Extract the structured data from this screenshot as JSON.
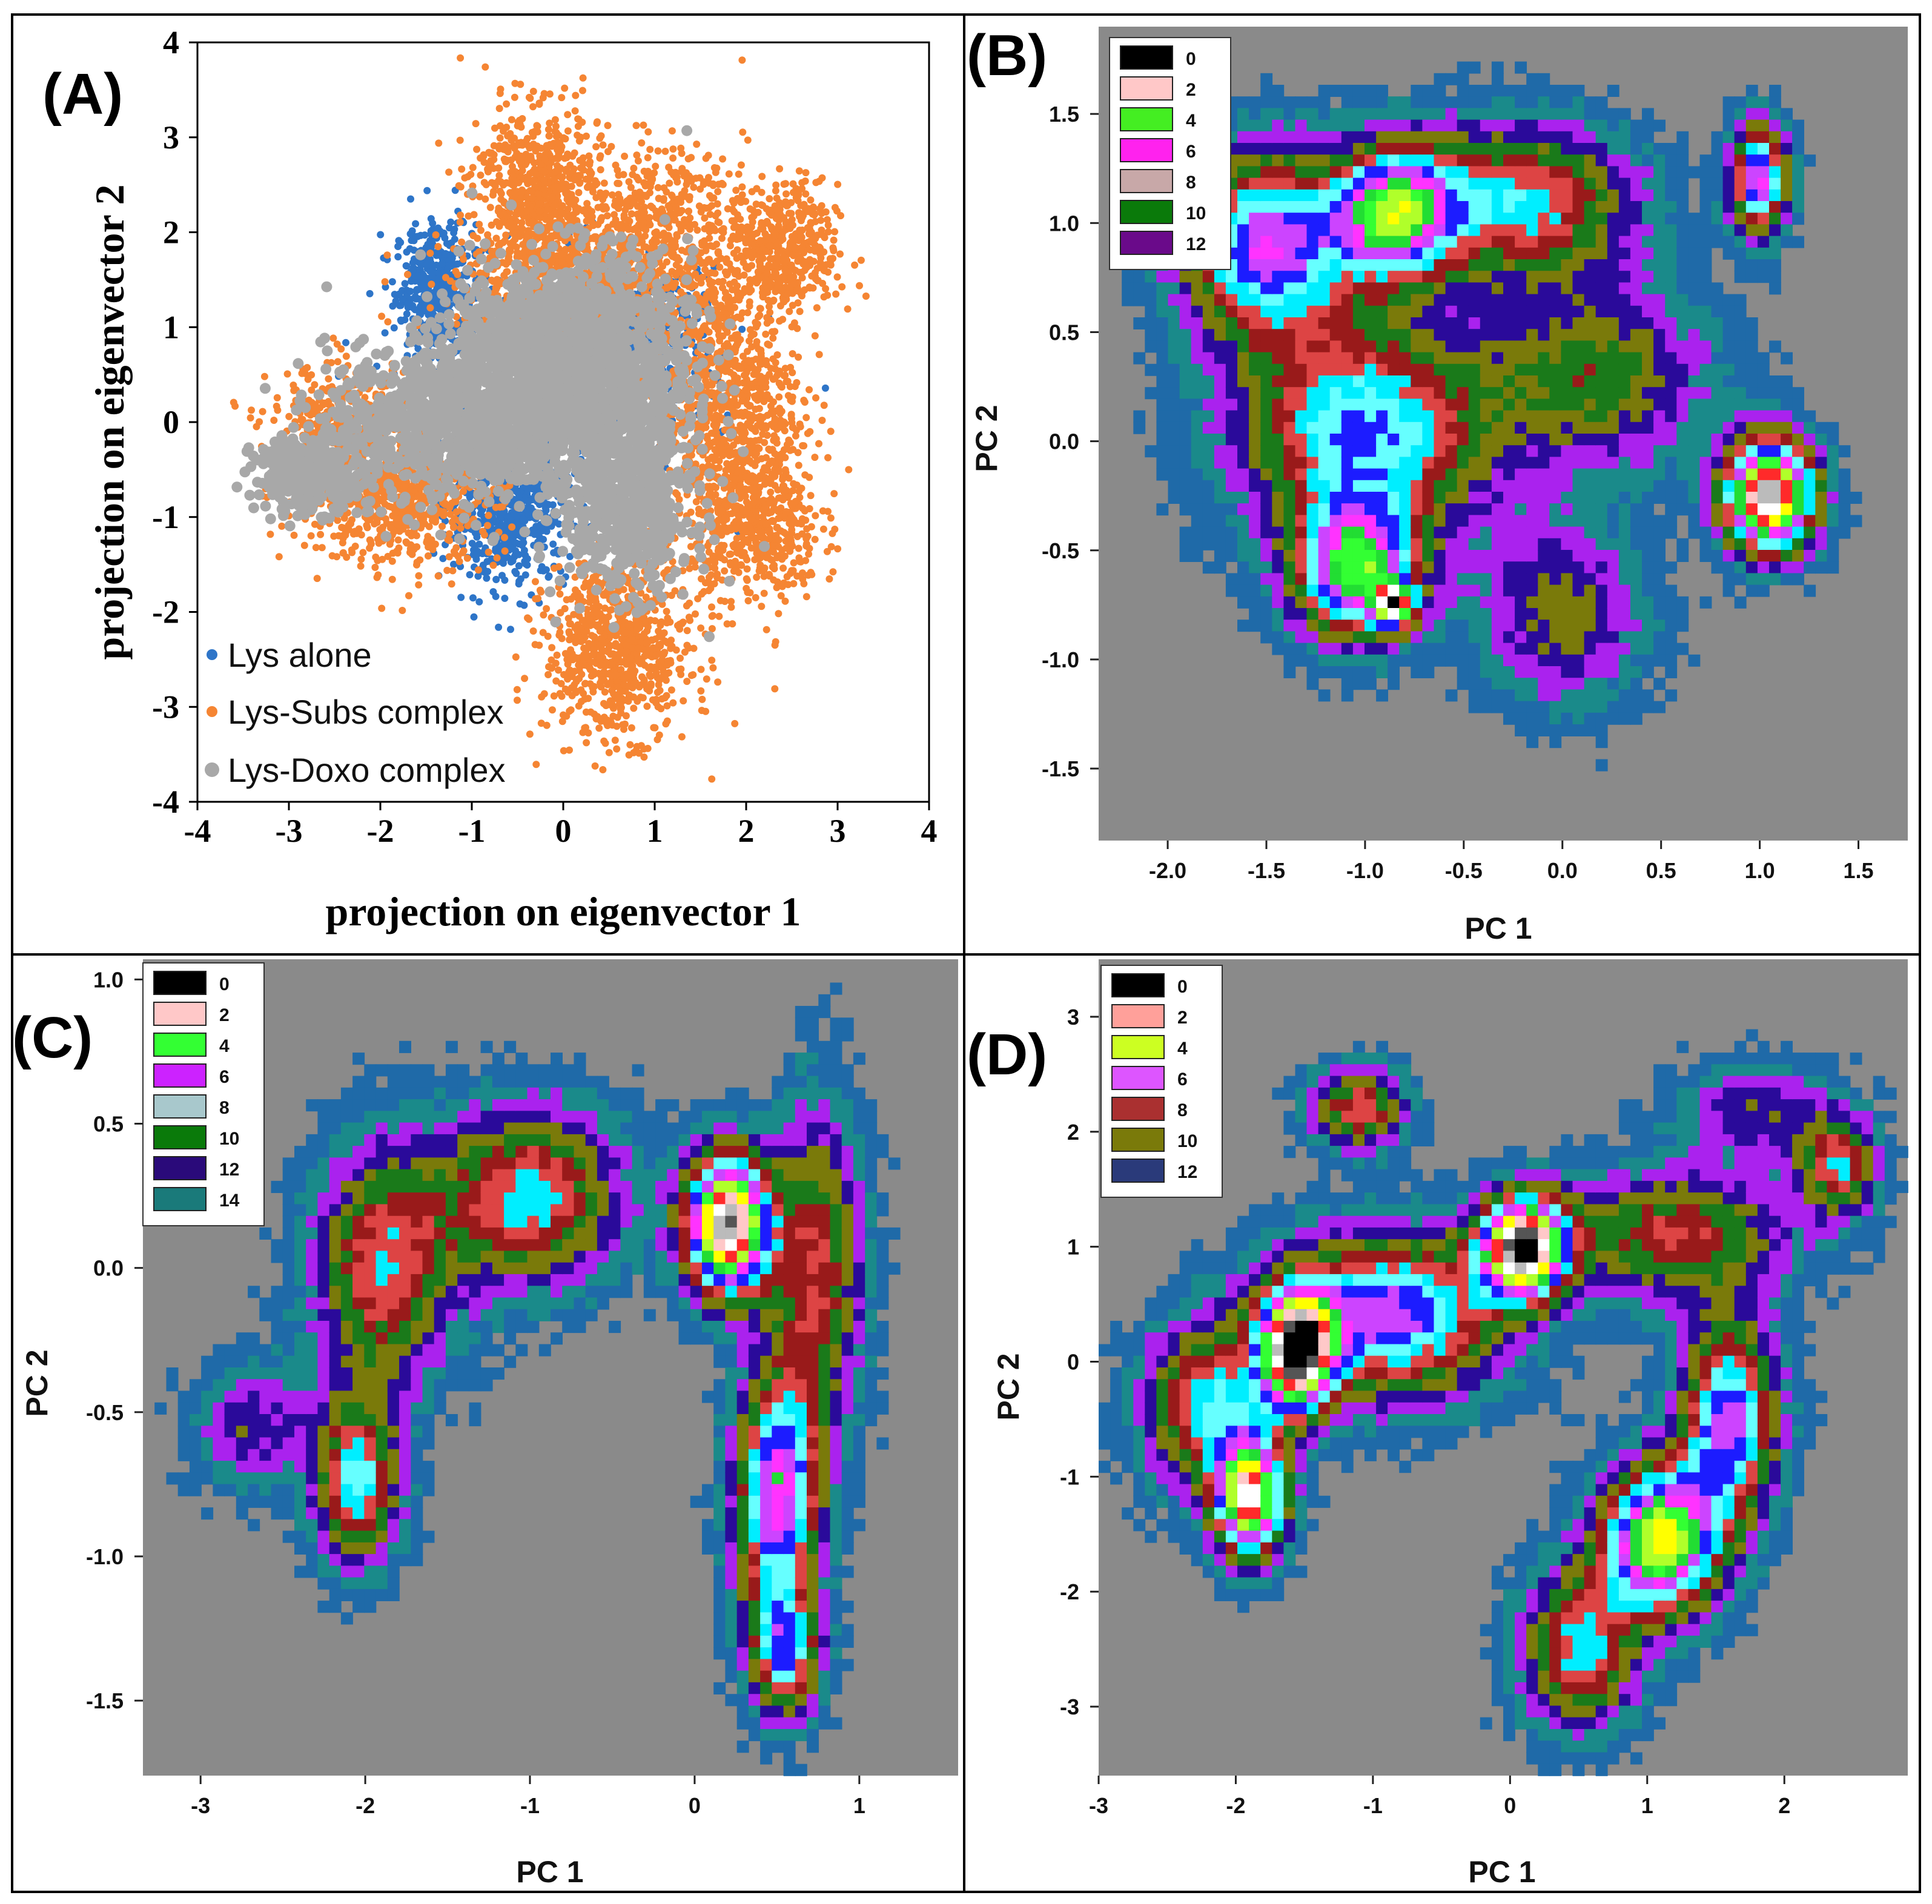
{
  "chart_data": [
    {
      "panel": "(A)",
      "type": "scatter",
      "xlabel": "projection on eigenvector 1",
      "ylabel": "projection on eigenvector 2",
      "xlim": [
        -4,
        4
      ],
      "ylim": [
        -4,
        4
      ],
      "x_ticks": [
        "-4",
        "-3",
        "-2",
        "-1",
        "0",
        "1",
        "2",
        "3",
        "4"
      ],
      "y_ticks": [
        "4",
        "3",
        "2",
        "1",
        "0",
        "-1",
        "-2",
        "-3",
        "-4"
      ],
      "legend": [
        "Lys alone",
        "Lys-Subs complex",
        "Lys-Doxo complex"
      ],
      "colors": [
        "#2e75c8",
        "#f58533",
        "#a8a8a8"
      ],
      "series": [
        {
          "name": "Lys alone",
          "clusters": [
            {
              "cx": -1.4,
              "cy": 1.4,
              "sx": 0.22,
              "sy": 0.35,
              "n": 450
            },
            {
              "cx": -0.6,
              "cy": -1.0,
              "sx": 0.32,
              "sy": 0.35,
              "n": 550
            },
            {
              "cx": 1.0,
              "cy": 1.0,
              "sx": 0.35,
              "sy": 0.3,
              "n": 250
            },
            {
              "cx": 0.0,
              "cy": 0.3,
              "sx": 0.8,
              "sy": 0.7,
              "n": 400
            }
          ]
        },
        {
          "name": "Lys-Subs complex",
          "clusters": [
            {
              "cx": -0.3,
              "cy": 2.4,
              "sx": 0.35,
              "sy": 0.45,
              "n": 700
            },
            {
              "cx": 1.0,
              "cy": 2.1,
              "sx": 0.5,
              "sy": 0.4,
              "n": 500
            },
            {
              "cx": 2.4,
              "cy": 1.8,
              "sx": 0.3,
              "sy": 0.35,
              "n": 500
            },
            {
              "cx": 1.8,
              "cy": 0.2,
              "sx": 0.4,
              "sy": 0.7,
              "n": 900
            },
            {
              "cx": 2.1,
              "cy": -1.1,
              "sx": 0.35,
              "sy": 0.4,
              "n": 500
            },
            {
              "cx": 0.6,
              "cy": -2.4,
              "sx": 0.4,
              "sy": 0.45,
              "n": 800
            },
            {
              "cx": -1.8,
              "cy": -0.8,
              "sx": 0.55,
              "sy": 0.35,
              "n": 700
            },
            {
              "cx": -2.4,
              "cy": -0.1,
              "sx": 0.4,
              "sy": 0.35,
              "n": 400
            },
            {
              "cx": 0.2,
              "cy": 1.4,
              "sx": 0.7,
              "sy": 0.3,
              "n": 700
            }
          ]
        },
        {
          "name": "Lys-Doxo complex",
          "clusters": [
            {
              "cx": 0.3,
              "cy": 0.5,
              "sx": 0.55,
              "sy": 0.6,
              "n": 1500
            },
            {
              "cx": -1.2,
              "cy": 0.0,
              "sx": 0.7,
              "sy": 0.4,
              "n": 1000
            },
            {
              "cx": 0.7,
              "cy": -0.9,
              "sx": 0.35,
              "sy": 0.45,
              "n": 600
            },
            {
              "cx": -2.8,
              "cy": -0.55,
              "sx": 0.3,
              "sy": 0.2,
              "n": 300
            },
            {
              "cx": -0.4,
              "cy": 0.8,
              "sx": 0.5,
              "sy": 0.35,
              "n": 600
            }
          ]
        }
      ]
    },
    {
      "panel": "(B)",
      "type": "heatmap",
      "xlabel": "PC 1",
      "ylabel": "PC 2",
      "xlim": [
        -2.35,
        1.75
      ],
      "ylim": [
        -1.83,
        1.9
      ],
      "x_ticks": [
        -2.0,
        -1.5,
        -1.0,
        -0.5,
        0.0,
        0.5,
        1.0,
        1.5
      ],
      "y_ticks": [
        1.5,
        1.0,
        0.5,
        0.0,
        -0.5,
        -1.0,
        -1.5
      ],
      "x_tick_labels": [
        "-2.0",
        "-1.5",
        "-1.0",
        "-0.5",
        "0.0",
        "0.5",
        "1.0",
        "1.5"
      ],
      "y_tick_labels": [
        "1.5",
        "1.0",
        "0.5",
        "0.0",
        "-0.5",
        "-1.0",
        "-1.5"
      ],
      "legend_levels": [
        "0",
        "2",
        "4",
        "6",
        "8",
        "10",
        "12"
      ],
      "legend_colors": [
        "#000000",
        "#ffc8c8",
        "#44ee22",
        "#ff22ee",
        "#c8a8a8",
        "#0a7a0a",
        "#6a0a8a"
      ],
      "colormap": [
        "#000000",
        "#555555",
        "#bbbbbb",
        "#ffffff",
        "#ffc8c8",
        "#ff2a2a",
        "#ffff00",
        "#b0ff2a",
        "#33ff33",
        "#22dd33",
        "#ff33ff",
        "#cc44ff",
        "#1c1cff",
        "#66ffff",
        "#00eeff",
        "#dd4444",
        "#991a1a",
        "#1a7a1a",
        "#7a7a0a",
        "#2a0a9a",
        "#aa22ee",
        "#1a8a8a",
        "#1f6aa8",
        "#8a8a8a"
      ],
      "peaks": [
        {
          "x": 1.05,
          "y": -0.25,
          "depth": 14,
          "sx": 0.16,
          "sy": 0.18
        },
        {
          "x": -1.05,
          "y": -0.6,
          "depth": 9,
          "sx": 0.22,
          "sy": 0.22
        },
        {
          "x": -0.85,
          "y": -0.75,
          "depth": 9.5,
          "sx": 0.07,
          "sy": 0.07
        },
        {
          "x": -1.5,
          "y": 0.9,
          "depth": 8,
          "sx": 0.3,
          "sy": 0.3
        },
        {
          "x": -0.85,
          "y": 1.05,
          "depth": 8.5,
          "sx": 0.22,
          "sy": 0.22
        },
        {
          "x": -1.0,
          "y": 0.05,
          "depth": 7,
          "sx": 0.45,
          "sy": 0.35
        },
        {
          "x": 1.0,
          "y": 1.2,
          "depth": 8.5,
          "sx": 0.1,
          "sy": 0.18
        },
        {
          "x": -0.2,
          "y": 1.1,
          "depth": 6,
          "sx": 0.4,
          "sy": 0.25
        },
        {
          "x": 0.2,
          "y": 0.3,
          "depth": 4,
          "sx": 0.4,
          "sy": 0.3
        },
        {
          "x": 0.0,
          "y": -0.8,
          "depth": 3.5,
          "sx": 0.3,
          "sy": 0.3
        }
      ]
    },
    {
      "panel": "(C)",
      "type": "heatmap",
      "xlabel": "PC 1",
      "ylabel": "PC 2",
      "xlim": [
        -3.35,
        1.6
      ],
      "ylim": [
        -1.76,
        1.07
      ],
      "x_ticks": [
        -3,
        -2,
        -1,
        0,
        1
      ],
      "y_ticks": [
        1.0,
        0.5,
        0.0,
        -0.5,
        -1.0,
        -1.5
      ],
      "x_tick_labels": [
        "-3",
        "-2",
        "-1",
        "0",
        "1"
      ],
      "y_tick_labels": [
        "1.0",
        "0.5",
        "0.0",
        "-0.5",
        "-1.0",
        "-1.5"
      ],
      "legend_levels": [
        "0",
        "2",
        "4",
        "6",
        "8",
        "10",
        "12",
        "14"
      ],
      "legend_colors": [
        "#000000",
        "#ffc8c8",
        "#33ff33",
        "#cc22ff",
        "#a8c8cc",
        "#0a7a0a",
        "#2a0a7a",
        "#1a7a7a"
      ],
      "colormap": [
        "#000000",
        "#555555",
        "#bbbbbb",
        "#ffffff",
        "#ffc8c8",
        "#ff2a2a",
        "#ffff00",
        "#b0ff2a",
        "#33ff33",
        "#22dd33",
        "#ff33ff",
        "#cc44ff",
        "#1c1cff",
        "#66ffff",
        "#00eeff",
        "#dd4444",
        "#991a1a",
        "#1a7a1a",
        "#7a7a0a",
        "#2a0a9a",
        "#aa22ee",
        "#1a8a8a",
        "#1f6aa8",
        "#8a8a8a"
      ],
      "peaks": [
        {
          "x": 0.2,
          "y": 0.15,
          "depth": 14,
          "sx": 0.18,
          "sy": 0.17
        },
        {
          "x": 0.5,
          "y": -0.8,
          "depth": 8.5,
          "sx": 0.18,
          "sy": 0.3
        },
        {
          "x": 0.55,
          "y": -1.35,
          "depth": 6,
          "sx": 0.15,
          "sy": 0.15
        },
        {
          "x": -1.0,
          "y": 0.25,
          "depth": 6,
          "sx": 0.4,
          "sy": 0.22
        },
        {
          "x": -1.9,
          "y": 0.0,
          "depth": 5.5,
          "sx": 0.3,
          "sy": 0.3
        },
        {
          "x": -2.05,
          "y": -0.75,
          "depth": 6.5,
          "sx": 0.18,
          "sy": 0.2
        },
        {
          "x": -2.7,
          "y": -0.55,
          "depth": 3,
          "sx": 0.25,
          "sy": 0.15
        },
        {
          "x": 0.75,
          "y": 0.0,
          "depth": 5,
          "sx": 0.2,
          "sy": 0.4
        }
      ]
    },
    {
      "panel": "(D)",
      "type": "heatmap",
      "xlabel": "PC 1",
      "ylabel": "PC 2",
      "xlim": [
        -3.0,
        2.9
      ],
      "ylim": [
        -3.6,
        3.5
      ],
      "x_ticks": [
        -3,
        -2,
        -1,
        0,
        1,
        2
      ],
      "y_ticks": [
        3,
        2,
        1,
        0,
        -1,
        -2,
        -3
      ],
      "x_tick_labels": [
        "-3",
        "-2",
        "-1",
        "0",
        "1",
        "2"
      ],
      "y_tick_labels": [
        "3",
        "2",
        "1",
        "0",
        "-1",
        "-2",
        "-3"
      ],
      "legend_levels": [
        "0",
        "2",
        "4",
        "6",
        "8",
        "10",
        "12"
      ],
      "legend_colors": [
        "#000000",
        "#ffa09a",
        "#ccff22",
        "#dd55ff",
        "#aa3030",
        "#7a7a0a",
        "#2a3a7a"
      ],
      "colormap": [
        "#000000",
        "#555555",
        "#bbbbbb",
        "#ffffff",
        "#ffc8c8",
        "#ff2a2a",
        "#ffff00",
        "#b0ff2a",
        "#33ff33",
        "#22dd33",
        "#ff33ff",
        "#cc44ff",
        "#1c1cff",
        "#66ffff",
        "#00eeff",
        "#dd4444",
        "#991a1a",
        "#1a7a1a",
        "#7a7a0a",
        "#2a0a9a",
        "#aa22ee",
        "#1a8a8a",
        "#1f6aa8",
        "#8a8a8a"
      ],
      "peaks": [
        {
          "x": 0.1,
          "y": 1.0,
          "depth": 14,
          "sx": 0.22,
          "sy": 0.3
        },
        {
          "x": -1.55,
          "y": 0.1,
          "depth": 13,
          "sx": 0.18,
          "sy": 0.35
        },
        {
          "x": -1.9,
          "y": -1.2,
          "depth": 12,
          "sx": 0.18,
          "sy": 0.35
        },
        {
          "x": 1.1,
          "y": -1.55,
          "depth": 11,
          "sx": 0.3,
          "sy": 0.45
        },
        {
          "x": -0.9,
          "y": 0.4,
          "depth": 8,
          "sx": 0.6,
          "sy": 0.5
        },
        {
          "x": 1.6,
          "y": -0.5,
          "depth": 8,
          "sx": 0.25,
          "sy": 0.6
        },
        {
          "x": 0.5,
          "y": -2.5,
          "depth": 6,
          "sx": 0.3,
          "sy": 0.5
        },
        {
          "x": -1.1,
          "y": 2.2,
          "depth": 5.5,
          "sx": 0.25,
          "sy": 0.25
        },
        {
          "x": 2.4,
          "y": 1.7,
          "depth": 5.5,
          "sx": 0.2,
          "sy": 0.3
        },
        {
          "x": -2.2,
          "y": -0.4,
          "depth": 6,
          "sx": 0.35,
          "sy": 0.5
        },
        {
          "x": 1.2,
          "y": 1.1,
          "depth": 5,
          "sx": 0.6,
          "sy": 0.4
        },
        {
          "x": 1.8,
          "y": 2.2,
          "depth": 3,
          "sx": 0.4,
          "sy": 0.3
        }
      ]
    }
  ]
}
